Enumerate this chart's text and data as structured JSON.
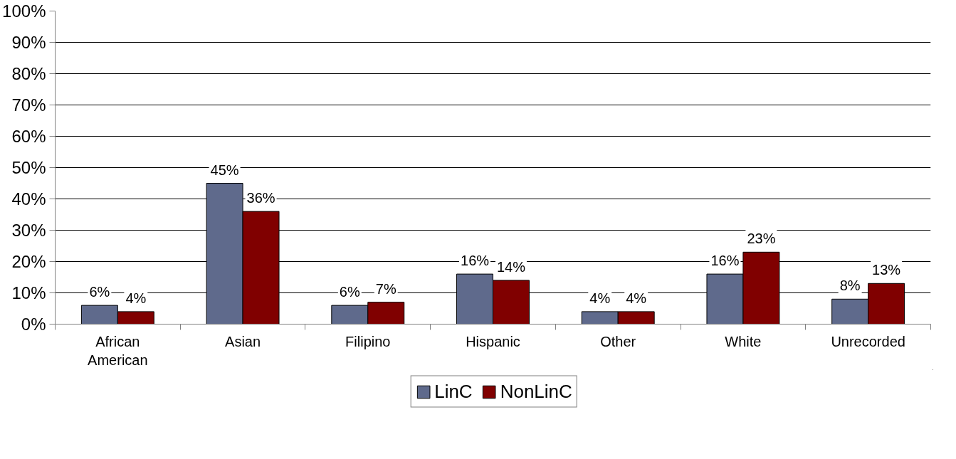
{
  "chart_data": {
    "type": "bar",
    "categories": [
      "African American",
      "Asian",
      "Filipino",
      "Hispanic",
      "Other",
      "White",
      "Unrecorded"
    ],
    "series": [
      {
        "name": "LinC",
        "color": "#5f6a8c",
        "values": [
          6,
          45,
          6,
          16,
          4,
          16,
          8
        ],
        "value_labels": [
          "6%",
          "45%",
          "6%",
          "16%",
          "4%",
          "16%",
          "8%"
        ]
      },
      {
        "name": "NonLinC",
        "color": "#800000",
        "values": [
          4,
          36,
          7,
          14,
          4,
          23,
          13
        ],
        "value_labels": [
          "4%",
          "36%",
          "7%",
          "14%",
          "4%",
          "23%",
          "13%"
        ]
      }
    ],
    "ylim": [
      0,
      100
    ],
    "yticks": [
      {
        "value": 0,
        "label": "0%"
      },
      {
        "value": 10,
        "label": "10%"
      },
      {
        "value": 20,
        "label": "20%"
      },
      {
        "value": 30,
        "label": "30%"
      },
      {
        "value": 40,
        "label": "40%"
      },
      {
        "value": 50,
        "label": "50%"
      },
      {
        "value": 60,
        "label": "60%"
      },
      {
        "value": 70,
        "label": "70%"
      },
      {
        "value": 80,
        "label": "80%"
      },
      {
        "value": 90,
        "label": "90%"
      },
      {
        "value": 100,
        "label": "100%"
      }
    ],
    "grid": "y",
    "legend": "bottom"
  }
}
